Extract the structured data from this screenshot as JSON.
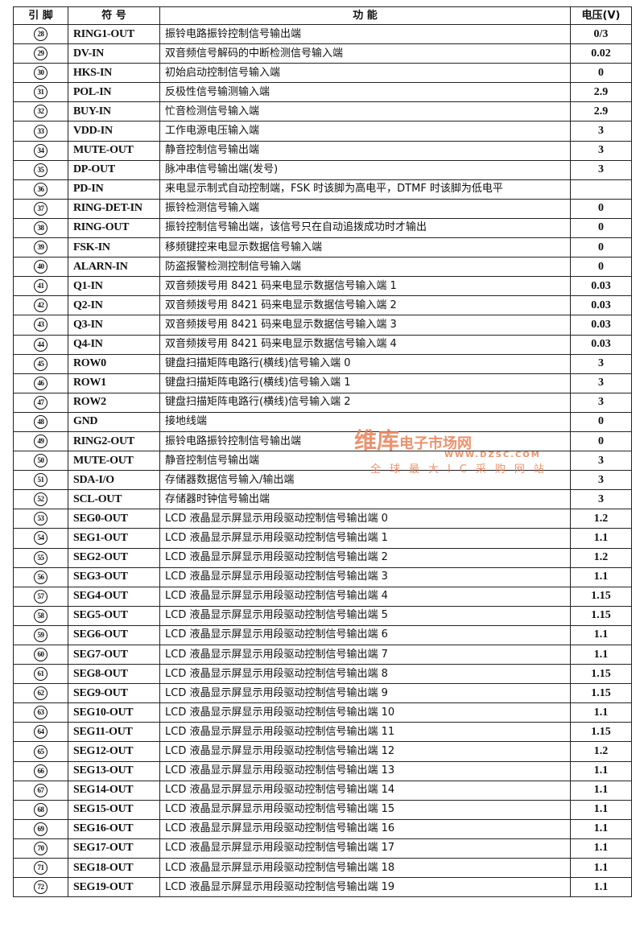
{
  "header": {
    "pin": "引 脚",
    "symbol": "符 号",
    "function": "功 能",
    "voltage": "电压(V)"
  },
  "rows": [
    {
      "pin": "28",
      "symbol": "RING1-OUT",
      "function": "振铃电路振铃控制信号输出端",
      "voltage": "0/3"
    },
    {
      "pin": "29",
      "symbol": "DV-IN",
      "function": "双音频信号解码的中断检测信号输入端",
      "voltage": "0.02"
    },
    {
      "pin": "30",
      "symbol": "HKS-IN",
      "function": "初始启动控制信号输入端",
      "voltage": "0"
    },
    {
      "pin": "31",
      "symbol": "POL-IN",
      "function": "反极性信号输测输入端",
      "voltage": "2.9"
    },
    {
      "pin": "32",
      "symbol": "BUY-IN",
      "function": "忙音检测信号输入端",
      "voltage": "2.9"
    },
    {
      "pin": "33",
      "symbol": "VDD-IN",
      "function": "工作电源电压输入端",
      "voltage": "3"
    },
    {
      "pin": "34",
      "symbol": "MUTE-OUT",
      "function": "静音控制信号输出端",
      "voltage": "3"
    },
    {
      "pin": "35",
      "symbol": "DP-OUT",
      "function": "脉冲串信号输出端(发号)",
      "voltage": "3"
    },
    {
      "pin": "36",
      "symbol": "PD-IN",
      "function": "来电显示制式自动控制端，FSK 时该脚为高电平，DTMF 时该脚为低电平",
      "voltage": ""
    },
    {
      "pin": "37",
      "symbol": "RING-DET-IN",
      "function": "振铃检测信号输入端",
      "voltage": "0"
    },
    {
      "pin": "38",
      "symbol": "RING-OUT",
      "function": "振铃控制信号输出端，该信号只在自动追拨成功时才输出",
      "voltage": "0"
    },
    {
      "pin": "39",
      "symbol": "FSK-IN",
      "function": "移频键控来电显示数据信号输入端",
      "voltage": "0"
    },
    {
      "pin": "40",
      "symbol": "ALARN-IN",
      "function": "防盗报警检测控制信号输入端",
      "voltage": "0"
    },
    {
      "pin": "41",
      "symbol": "Q1-IN",
      "function": "双音频拨号用 8421 码来电显示数据信号输入端 1",
      "voltage": "0.03"
    },
    {
      "pin": "42",
      "symbol": "Q2-IN",
      "function": "双音频拨号用 8421 码来电显示数据信号输入端 2",
      "voltage": "0.03"
    },
    {
      "pin": "43",
      "symbol": "Q3-IN",
      "function": "双音频拨号用 8421 码来电显示数据信号输入端 3",
      "voltage": "0.03"
    },
    {
      "pin": "44",
      "symbol": "Q4-IN",
      "function": "双音频拨号用 8421 码来电显示数据信号输入端 4",
      "voltage": "0.03"
    },
    {
      "pin": "45",
      "symbol": "ROW0",
      "function": "键盘扫描矩阵电路行(横线)信号输入端 0",
      "voltage": "3"
    },
    {
      "pin": "46",
      "symbol": "ROW1",
      "function": "键盘扫描矩阵电路行(横线)信号输入端 1",
      "voltage": "3"
    },
    {
      "pin": "47",
      "symbol": "ROW2",
      "function": "键盘扫描矩阵电路行(横线)信号输入端 2",
      "voltage": "3"
    },
    {
      "pin": "48",
      "symbol": "GND",
      "function": "接地线端",
      "voltage": "0"
    },
    {
      "pin": "49",
      "symbol": "RING2-OUT",
      "function": "振铃电路振铃控制信号输出端",
      "voltage": "0"
    },
    {
      "pin": "50",
      "symbol": "MUTE-OUT",
      "function": "静音控制信号输出端",
      "voltage": "3"
    },
    {
      "pin": "51",
      "symbol": "SDA-I/O",
      "function": "存储器数据信号输入/输出端",
      "voltage": "3"
    },
    {
      "pin": "52",
      "symbol": "SCL-OUT",
      "function": "存储器时钟信号输出端",
      "voltage": "3"
    },
    {
      "pin": "53",
      "symbol": "SEG0-OUT",
      "function": "LCD 液晶显示屏显示用段驱动控制信号输出端 0",
      "voltage": "1.2"
    },
    {
      "pin": "54",
      "symbol": "SEG1-OUT",
      "function": "LCD 液晶显示屏显示用段驱动控制信号输出端 1",
      "voltage": "1.1"
    },
    {
      "pin": "55",
      "symbol": "SEG2-OUT",
      "function": "LCD 液晶显示屏显示用段驱动控制信号输出端 2",
      "voltage": "1.2"
    },
    {
      "pin": "56",
      "symbol": "SEG3-OUT",
      "function": "LCD 液晶显示屏显示用段驱动控制信号输出端 3",
      "voltage": "1.1"
    },
    {
      "pin": "57",
      "symbol": "SEG4-OUT",
      "function": "LCD 液晶显示屏显示用段驱动控制信号输出端 4",
      "voltage": "1.15"
    },
    {
      "pin": "58",
      "symbol": "SEG5-OUT",
      "function": "LCD 液晶显示屏显示用段驱动控制信号输出端 5",
      "voltage": "1.15"
    },
    {
      "pin": "59",
      "symbol": "SEG6-OUT",
      "function": "LCD 液晶显示屏显示用段驱动控制信号输出端 6",
      "voltage": "1.1"
    },
    {
      "pin": "60",
      "symbol": "SEG7-OUT",
      "function": "LCD 液晶显示屏显示用段驱动控制信号输出端 7",
      "voltage": "1.1"
    },
    {
      "pin": "61",
      "symbol": "SEG8-OUT",
      "function": "LCD 液晶显示屏显示用段驱动控制信号输出端 8",
      "voltage": "1.15"
    },
    {
      "pin": "62",
      "symbol": "SEG9-OUT",
      "function": "LCD 液晶显示屏显示用段驱动控制信号输出端 9",
      "voltage": "1.15"
    },
    {
      "pin": "63",
      "symbol": "SEG10-OUT",
      "function": "LCD 液晶显示屏显示用段驱动控制信号输出端 10",
      "voltage": "1.1"
    },
    {
      "pin": "64",
      "symbol": "SEG11-OUT",
      "function": "LCD 液晶显示屏显示用段驱动控制信号输出端 11",
      "voltage": "1.15"
    },
    {
      "pin": "65",
      "symbol": "SEG12-OUT",
      "function": "LCD 液晶显示屏显示用段驱动控制信号输出端 12",
      "voltage": "1.2"
    },
    {
      "pin": "66",
      "symbol": "SEG13-OUT",
      "function": "LCD 液晶显示屏显示用段驱动控制信号输出端 13",
      "voltage": "1.1"
    },
    {
      "pin": "67",
      "symbol": "SEG14-OUT",
      "function": "LCD 液晶显示屏显示用段驱动控制信号输出端 14",
      "voltage": "1.1"
    },
    {
      "pin": "68",
      "symbol": "SEG15-OUT",
      "function": "LCD 液晶显示屏显示用段驱动控制信号输出端 15",
      "voltage": "1.1"
    },
    {
      "pin": "69",
      "symbol": "SEG16-OUT",
      "function": "LCD 液晶显示屏显示用段驱动控制信号输出端 16",
      "voltage": "1.1"
    },
    {
      "pin": "70",
      "symbol": "SEG17-OUT",
      "function": "LCD 液晶显示屏显示用段驱动控制信号输出端 17",
      "voltage": "1.1"
    },
    {
      "pin": "71",
      "symbol": "SEG18-OUT",
      "function": "LCD 液晶显示屏显示用段驱动控制信号输出端 18",
      "voltage": "1.1"
    },
    {
      "pin": "72",
      "symbol": "SEG19-OUT",
      "function": "LCD 液晶显示屏显示用段驱动控制信号输出端 19",
      "voltage": "1.1"
    }
  ],
  "watermark": {
    "brand": "维库",
    "name": "电子市场网",
    "url": "WWW.DZSC.COM",
    "slogan": "全球最大IC采购网站",
    "color": "#e8784a"
  }
}
